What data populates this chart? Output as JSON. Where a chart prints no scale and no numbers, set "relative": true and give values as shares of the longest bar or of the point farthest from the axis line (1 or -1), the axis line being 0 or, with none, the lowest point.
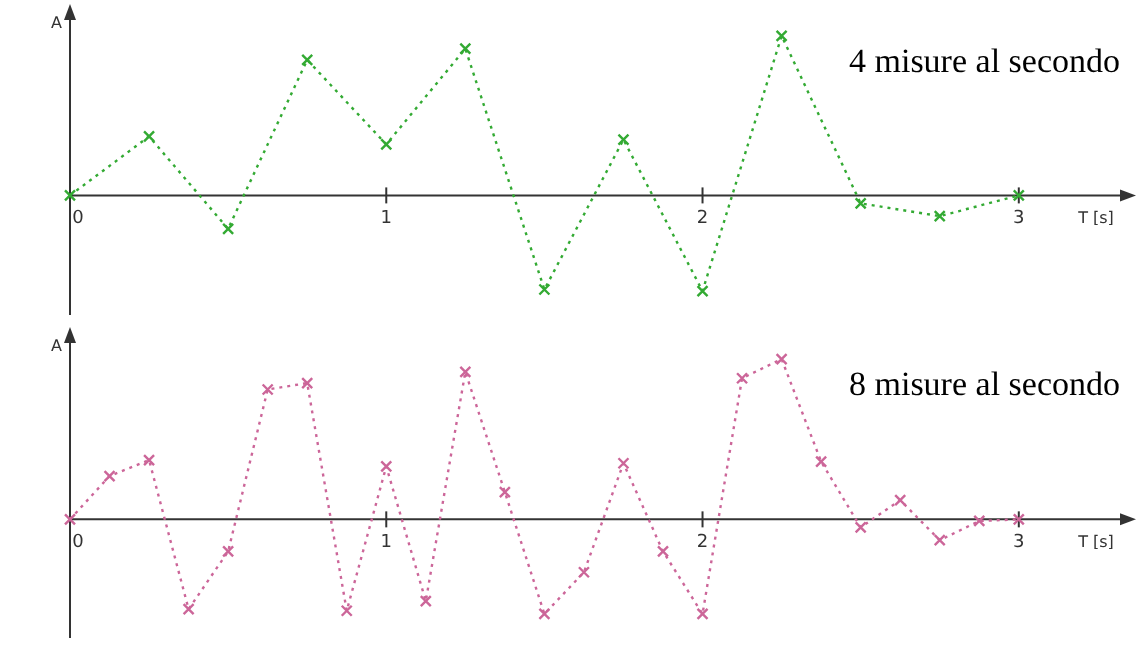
{
  "chart_data": [
    {
      "type": "line",
      "title": "4 misure al secondo",
      "xlabel": "T [s]",
      "ylabel": "A",
      "relative": true,
      "xlim": [
        0,
        3.32
      ],
      "xticks": [
        0,
        1,
        2,
        3
      ],
      "marker": "cross",
      "line_style": "dotted",
      "grid": false,
      "series": [
        {
          "color": "#33aa33",
          "x": [
            0,
            0.25,
            0.5,
            0.75,
            1,
            1.25,
            1.5,
            1.75,
            2,
            2.25,
            2.5,
            2.75,
            3
          ],
          "values": [
            0,
            0.37,
            -0.21,
            0.85,
            0.32,
            0.92,
            -0.59,
            0.35,
            -0.6,
            1,
            -0.05,
            -0.13,
            0
          ]
        }
      ]
    },
    {
      "type": "line",
      "title": "8 misure al secondo",
      "xlabel": "T [s]",
      "ylabel": "A",
      "relative": true,
      "xlim": [
        0,
        3.32
      ],
      "xticks": [
        0,
        1,
        2,
        3
      ],
      "marker": "cross",
      "line_style": "dotted",
      "grid": false,
      "series": [
        {
          "color": "#cc6699",
          "x": [
            0,
            0.125,
            0.25,
            0.375,
            0.5,
            0.625,
            0.75,
            0.875,
            1,
            1.125,
            1.25,
            1.375,
            1.5,
            1.625,
            1.75,
            1.875,
            2,
            2.125,
            2.25,
            2.375,
            2.5,
            2.625,
            2.75,
            2.875,
            3
          ],
          "values": [
            0,
            0.27,
            0.37,
            -0.56,
            -0.2,
            0.81,
            0.85,
            -0.57,
            0.33,
            -0.51,
            0.92,
            0.17,
            -0.59,
            -0.33,
            0.35,
            -0.2,
            -0.59,
            0.88,
            1,
            0.36,
            -0.05,
            0.12,
            -0.13,
            -0.01,
            0
          ]
        }
      ]
    }
  ]
}
